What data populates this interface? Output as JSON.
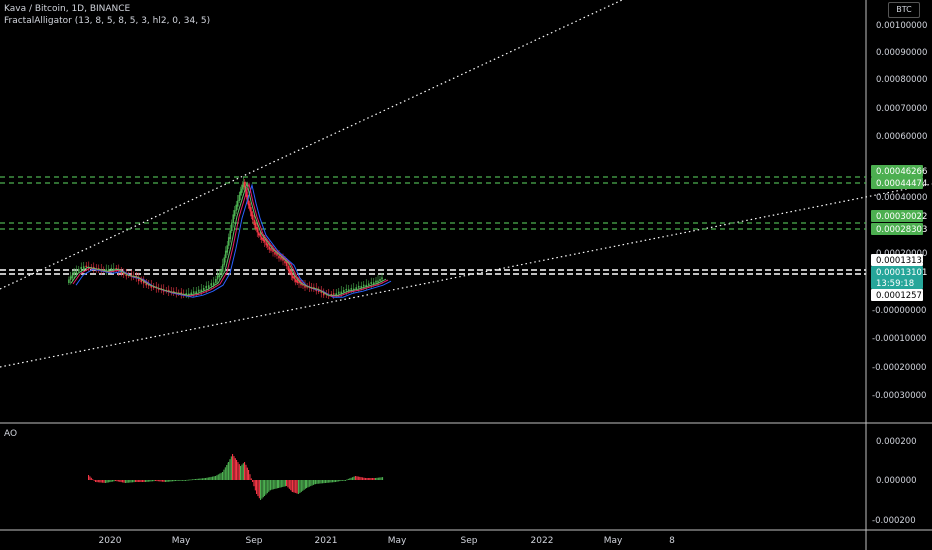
{
  "header": {
    "symbol_title": "Kava / Bitcoin, 1D, BINANCE",
    "indicator": "FractalAlligator (13, 8, 5, 8, 5, 3, hl2, 0, 34, 5)"
  },
  "currency": "BTC",
  "price_axis": {
    "ticks": [
      "0.00100000",
      "0.00090000",
      "0.00080000",
      "0.00070000",
      "0.00060000",
      "0.00040000",
      "0.00020000",
      "-0.00000000",
      "-0.00010000",
      "-0.00020000",
      "-0.00030000"
    ]
  },
  "level_labels": [
    {
      "text": "0.00046266",
      "style": "green"
    },
    {
      "text": "0.00044474",
      "style": "green"
    },
    {
      "text": "0.00030022",
      "style": "green"
    },
    {
      "text": "0.00028303",
      "style": "green"
    },
    {
      "text": "0.00013133",
      "style": "white"
    },
    {
      "text": "0.00013101",
      "style": "teal"
    },
    {
      "text": "13:59:18",
      "style": "teal"
    },
    {
      "text": "0.00012571",
      "style": "white"
    }
  ],
  "ao": {
    "label": "AO",
    "ticks": [
      "0.000200",
      "0.000000",
      "-0.000200"
    ]
  },
  "time_axis": {
    "labels": [
      "2020",
      "May",
      "Sep",
      "2021",
      "May",
      "Sep",
      "2022",
      "May",
      "8"
    ]
  },
  "colors": {
    "background": "#000000",
    "green_level": "#4caf50",
    "teal_price": "#26a69a",
    "bullish": "#4caf50",
    "bearish": "#f23645",
    "jaw": "#2962ff",
    "teeth": "#e91e63",
    "lips": "#66bb6a"
  }
}
